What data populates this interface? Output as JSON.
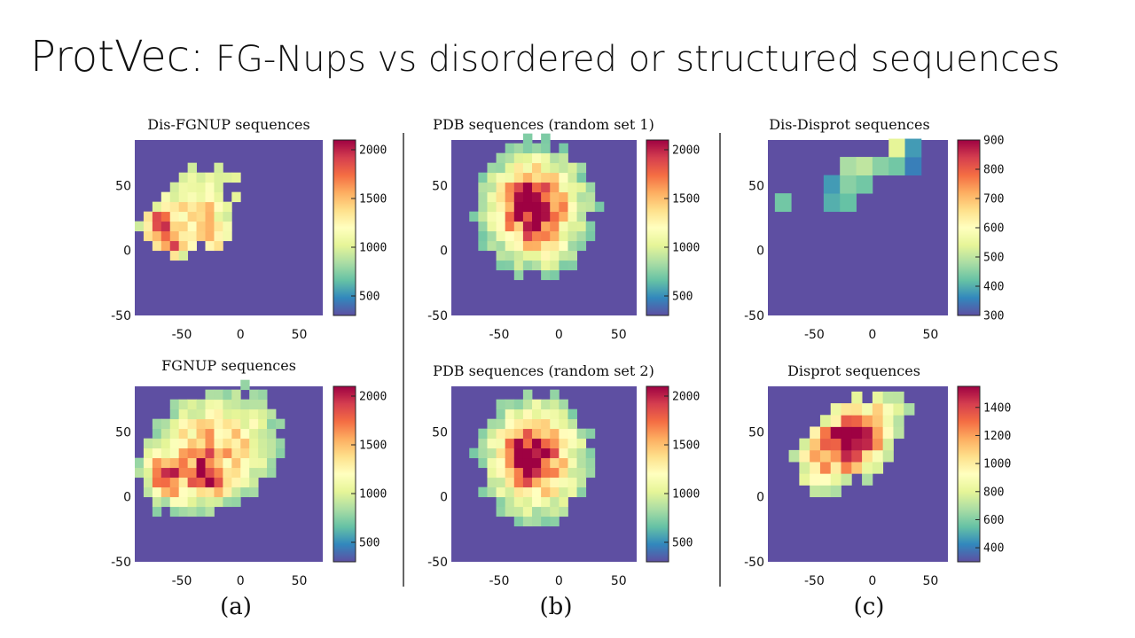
{
  "slide": {
    "title_main": "ProtVec:",
    "title_rest": " FG-Nups vs disordered or structured sequences"
  },
  "group_labels": [
    "(a)",
    "(b)",
    "(c)"
  ],
  "colors": {
    "background_cell": "#5e4fa2",
    "separator": "#333333",
    "colormap": [
      "#5e4fa2",
      "#3288bd",
      "#66c2a5",
      "#abdda4",
      "#e6f598",
      "#ffffbf",
      "#fee08b",
      "#fdae61",
      "#f46d43",
      "#d53e4f",
      "#9e0142"
    ]
  },
  "chart_data": [
    {
      "type": "heatmap",
      "title": "Dis-FGNUP sequences",
      "xlim": [
        -90,
        70
      ],
      "ylim": [
        -50,
        85
      ],
      "xticks": [
        "-50",
        "0",
        "50"
      ],
      "yticks": [
        "-50",
        "0",
        "50"
      ],
      "colorbar": {
        "min": 300,
        "max": 2100,
        "ticks": [
          "500",
          "1000",
          "1500",
          "2000"
        ]
      },
      "bin_size": 7.5,
      "blobs": [
        {
          "x": -35,
          "y": 38,
          "sx": 38,
          "sy": 28,
          "rot": 0.55,
          "amp": 1000
        },
        {
          "x": -70,
          "y": 18,
          "sx": 9,
          "sy": 10,
          "rot": 0.8,
          "amp": 1000
        },
        {
          "x": -55,
          "y": 5,
          "sx": 9,
          "sy": 10,
          "rot": 0.8,
          "amp": 800
        },
        {
          "x": -22,
          "y": 12,
          "sx": 8,
          "sy": 12,
          "rot": 0.7,
          "amp": 700
        }
      ],
      "cutoff": 700
    },
    {
      "type": "heatmap",
      "title": "FGNUP sequences",
      "xlim": [
        -90,
        70
      ],
      "ylim": [
        -50,
        85
      ],
      "xticks": [
        "-50",
        "0",
        "50"
      ],
      "yticks": [
        "-50",
        "0",
        "50"
      ],
      "colorbar": {
        "min": 300,
        "max": 2100,
        "ticks": [
          "500",
          "1000",
          "1500",
          "2000"
        ]
      },
      "bin_size": 7.5,
      "blobs": [
        {
          "x": -25,
          "y": 35,
          "sx": 45,
          "sy": 34,
          "rot": 0.45,
          "amp": 1250
        },
        {
          "x": -65,
          "y": 15,
          "sx": 9,
          "sy": 11,
          "rot": 0.8,
          "amp": 900
        },
        {
          "x": -30,
          "y": 15,
          "sx": 9,
          "sy": 12,
          "rot": 0.7,
          "amp": 700
        }
      ],
      "cutoff": 500
    },
    {
      "type": "heatmap",
      "title": "PDB sequences (random set 1)",
      "xlim": [
        -90,
        65
      ],
      "ylim": [
        -50,
        85
      ],
      "xticks": [
        "-50",
        "0",
        "50"
      ],
      "yticks": [
        "-50",
        "0",
        "50"
      ],
      "colorbar": {
        "min": 300,
        "max": 2100,
        "ticks": [
          "500",
          "1000",
          "1500",
          "2000"
        ]
      },
      "bin_size": 7.5,
      "blobs": [
        {
          "x": -20,
          "y": 32,
          "sx": 32,
          "sy": 34,
          "rot": 0.2,
          "amp": 1500
        },
        {
          "x": -25,
          "y": 35,
          "sx": 12,
          "sy": 13,
          "rot": 0,
          "amp": 600
        }
      ],
      "cutoff": 450
    },
    {
      "type": "heatmap",
      "title": "PDB sequences (random set 2)",
      "xlim": [
        -90,
        65
      ],
      "ylim": [
        -50,
        85
      ],
      "xticks": [
        "-50",
        "0",
        "50"
      ],
      "yticks": [
        "-50",
        "0",
        "50"
      ],
      "colorbar": {
        "min": 300,
        "max": 2100,
        "ticks": [
          "500",
          "1000",
          "1500",
          "2000"
        ]
      },
      "bin_size": 7.5,
      "blobs": [
        {
          "x": -20,
          "y": 30,
          "sx": 31,
          "sy": 33,
          "rot": 0.2,
          "amp": 1500
        },
        {
          "x": -25,
          "y": 32,
          "sx": 12,
          "sy": 12,
          "rot": 0,
          "amp": 600
        }
      ],
      "cutoff": 450
    },
    {
      "type": "heatmap",
      "title": "Dis-Disprot sequences",
      "xlim": [
        -90,
        65
      ],
      "ylim": [
        -50,
        85
      ],
      "xticks": [
        "-50",
        "0",
        "50"
      ],
      "yticks": [
        "-50",
        "0",
        "50"
      ],
      "colorbar": {
        "min": 300,
        "max": 900,
        "ticks": [
          "300",
          "400",
          "500",
          "600",
          "700",
          "800",
          "900"
        ]
      },
      "bin_size": 14,
      "cells": [
        {
          "x": -84,
          "y": 30,
          "v": 430
        },
        {
          "x": -42,
          "y": 30,
          "v": 400
        },
        {
          "x": -28,
          "y": 30,
          "v": 420
        },
        {
          "x": -42,
          "y": 44,
          "v": 380
        },
        {
          "x": -28,
          "y": 44,
          "v": 450
        },
        {
          "x": -14,
          "y": 44,
          "v": 430
        },
        {
          "x": -28,
          "y": 58,
          "v": 480
        },
        {
          "x": -14,
          "y": 58,
          "v": 500
        },
        {
          "x": 0,
          "y": 58,
          "v": 450
        },
        {
          "x": 14,
          "y": 58,
          "v": 430
        },
        {
          "x": 28,
          "y": 58,
          "v": 350
        },
        {
          "x": 14,
          "y": 72,
          "v": 540
        },
        {
          "x": 28,
          "y": 72,
          "v": 380
        }
      ]
    },
    {
      "type": "heatmap",
      "title": "Disprot sequences",
      "xlim": [
        -90,
        65
      ],
      "ylim": [
        -50,
        85
      ],
      "xticks": [
        "-50",
        "0",
        "50"
      ],
      "yticks": [
        "-50",
        "0",
        "50"
      ],
      "colorbar": {
        "min": 300,
        "max": 1550,
        "ticks": [
          "400",
          "600",
          "800",
          "1000",
          "1200",
          "1400"
        ]
      },
      "bin_size": 9,
      "blobs": [
        {
          "x": -20,
          "y": 42,
          "sx": 38,
          "sy": 22,
          "rot": 0.55,
          "amp": 1100
        },
        {
          "x": -25,
          "y": 48,
          "sx": 12,
          "sy": 9,
          "rot": 0.5,
          "amp": 350
        }
      ],
      "cutoff": 420
    }
  ]
}
